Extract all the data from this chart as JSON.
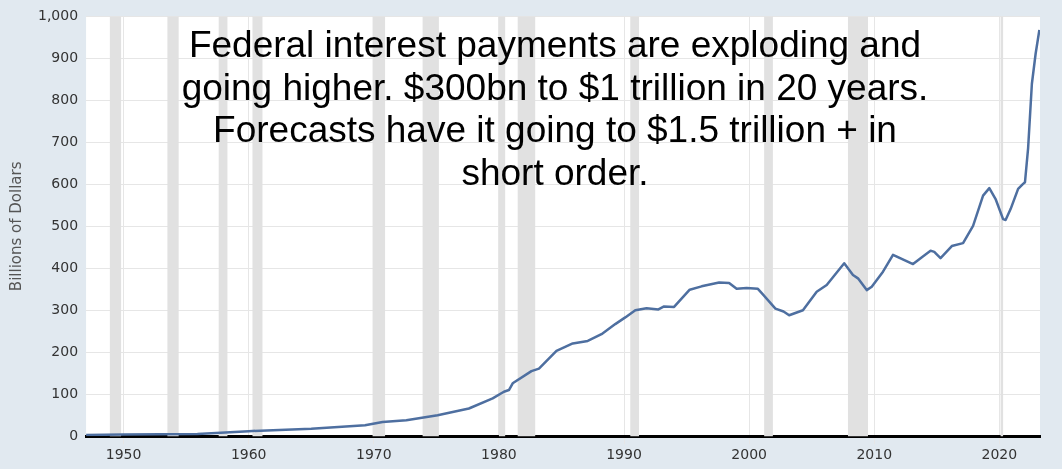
{
  "chart_data": {
    "type": "line",
    "ylabel": "Billions of Dollars",
    "annotations": [
      "Federal interest payments are exploding and\ngoing higher. $300bn to $1 trillion in 20 years.\nForecasts have it going to $1.5 trillion + in\nshort order."
    ],
    "series": [
      {
        "color": "#4e6fa0",
        "x": [
          1947,
          1950,
          1955.9,
          1960,
          1965,
          1969.3,
          1970.7,
          1972.6,
          1975.1,
          1977.6,
          1979.5,
          1980.4,
          1980.8,
          1981.1,
          1982.6,
          1983.2,
          1984.6,
          1985.9,
          1987.1,
          1988.2,
          1989.3,
          1990.1,
          1990.9,
          1991.8,
          1992.75,
          1993.2,
          1994,
          1995.25,
          1996.2,
          1997.6,
          1998.4,
          1999,
          1999.8,
          2000.7,
          2002.1,
          2002.75,
          2003.2,
          2004.3,
          2005.4,
          2006.2,
          2007.6,
          2008.3,
          2008.7,
          2009.4,
          2009.8,
          2010.7,
          2011.5,
          2013.1,
          2014.5,
          2014.8,
          2015.3,
          2016.2,
          2017.1,
          2017.9,
          2018.7,
          2019.2,
          2019.7,
          2020.3,
          2020.5,
          2020.9,
          2021.5,
          2021.9,
          2022.05,
          2022.3,
          2022.6,
          2022.9,
          2023.2
        ],
        "values": [
          3,
          4,
          5,
          12,
          18,
          26,
          34,
          38,
          50,
          66,
          90,
          106,
          110,
          126,
          155,
          161,
          203,
          221,
          227,
          243,
          267,
          283,
          300,
          305,
          302,
          309,
          308,
          349,
          357,
          366,
          365,
          351,
          353,
          351,
          304,
          297,
          288,
          300,
          344,
          360,
          412,
          384,
          376,
          348,
          356,
          392,
          432,
          410,
          442,
          439,
          424,
          453,
          460,
          501,
          573,
          591,
          565,
          517,
          515,
          541,
          589,
          601,
          605,
          686,
          839,
          911,
          968
        ]
      }
    ],
    "xlim": [
      1947,
      2023.25
    ],
    "xticks": [
      1950,
      1960,
      1970,
      1980,
      1990,
      2000,
      2010,
      2020
    ],
    "ylim": [
      0,
      1000
    ],
    "yticks": [
      0,
      100,
      200,
      300,
      400,
      500,
      600,
      700,
      800,
      900,
      {
        "value": 1000,
        "label": "1,000"
      }
    ],
    "grid": true,
    "marker": "none",
    "line_style": "solid",
    "bands": [
      {
        "axis": "x",
        "from": 1948.9,
        "to": 1949.8,
        "color": "#e1e1e1"
      },
      {
        "axis": "x",
        "from": 1953.5,
        "to": 1954.4,
        "color": "#e1e1e1"
      },
      {
        "axis": "x",
        "from": 1957.6,
        "to": 1958.3,
        "color": "#e1e1e1"
      },
      {
        "axis": "x",
        "from": 1960.3,
        "to": 1961.1,
        "color": "#e1e1e1"
      },
      {
        "axis": "x",
        "from": 1969.9,
        "to": 1970.9,
        "color": "#e1e1e1"
      },
      {
        "axis": "x",
        "from": 1973.9,
        "to": 1975.2,
        "color": "#e1e1e1"
      },
      {
        "axis": "x",
        "from": 1980,
        "to": 1980.5,
        "color": "#e1e1e1"
      },
      {
        "axis": "x",
        "from": 1981.5,
        "to": 1982.9,
        "color": "#e1e1e1"
      },
      {
        "axis": "x",
        "from": 1990.5,
        "to": 1991.2,
        "color": "#e1e1e1"
      },
      {
        "axis": "x",
        "from": 2001.2,
        "to": 2001.9,
        "color": "#e1e1e1"
      },
      {
        "axis": "x",
        "from": 2007.9,
        "to": 2009.5,
        "color": "#e1e1e1"
      },
      {
        "axis": "x",
        "from": 2020.1,
        "to": 2020.3,
        "color": "#e1e1e1"
      }
    ]
  }
}
